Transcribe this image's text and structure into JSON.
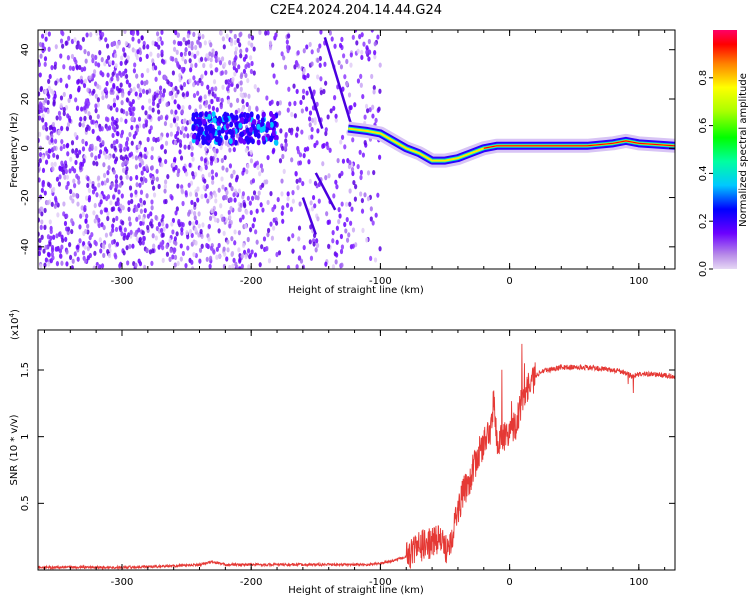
{
  "title": "C2E4.2024.204.14.44.G24",
  "chart_data": [
    {
      "type": "heatmap",
      "xlabel": "Height of straight line (km)",
      "ylabel": "Frequency (Hz)",
      "xlim": [
        -365,
        128
      ],
      "ylim": [
        -49,
        48
      ],
      "x_ticks": [
        -300,
        -200,
        -100,
        0,
        100
      ],
      "y_ticks": [
        -40,
        -20,
        0,
        20,
        40
      ],
      "ridge": {
        "x": [
          -125,
          -110,
          -100,
          -90,
          -80,
          -70,
          -60,
          -50,
          -40,
          -30,
          -20,
          -10,
          0,
          20,
          60,
          80,
          90,
          100,
          128
        ],
        "y": [
          8,
          7,
          6,
          3,
          0,
          -2,
          -5,
          -5,
          -4,
          -2,
          0,
          1,
          1,
          1,
          1,
          2,
          3,
          2,
          1
        ]
      },
      "colorbar": {
        "label": "Normalized spectral amplitude",
        "range": [
          0.0,
          1.0
        ],
        "ticks": [
          0.0,
          0.2,
          0.4,
          0.6,
          0.8
        ]
      }
    },
    {
      "type": "line",
      "xlabel": "Height of straight line (km)",
      "ylabel": "SNR (10 * v/v)",
      "multiplier": "(x10",
      "multiplier_exp": "4",
      "multiplier_close": ")",
      "xlim": [
        -365,
        128
      ],
      "ylim": [
        0.0,
        1.8
      ],
      "x_ticks": [
        -300,
        -200,
        -100,
        0,
        100
      ],
      "y_ticks": [
        0.5,
        1.0,
        1.5
      ],
      "color": "#e53935",
      "series": [
        {
          "x": [
            -365,
            -340,
            -300,
            -260,
            -240,
            -230,
            -220,
            -200,
            -180,
            -160,
            -140,
            -120,
            -110,
            -100,
            -90,
            -80,
            -70,
            -60,
            -55,
            -50,
            -45,
            -40,
            -35,
            -30,
            -25,
            -20,
            -15,
            -12,
            -10,
            -5,
            0,
            5,
            8,
            10,
            12,
            15,
            20,
            25,
            30,
            40,
            60,
            80,
            90,
            95,
            100,
            110,
            128
          ],
          "y": [
            0.02,
            0.02,
            0.02,
            0.03,
            0.04,
            0.06,
            0.04,
            0.04,
            0.04,
            0.04,
            0.04,
            0.04,
            0.04,
            0.05,
            0.07,
            0.1,
            0.18,
            0.2,
            0.25,
            0.15,
            0.25,
            0.45,
            0.6,
            0.7,
            0.85,
            0.95,
            1.05,
            1.3,
            0.95,
            1.0,
            1.05,
            1.1,
            1.2,
            1.3,
            1.35,
            1.4,
            1.45,
            1.5,
            1.5,
            1.52,
            1.52,
            1.5,
            1.48,
            1.45,
            1.47,
            1.47,
            1.45
          ]
        }
      ]
    }
  ]
}
